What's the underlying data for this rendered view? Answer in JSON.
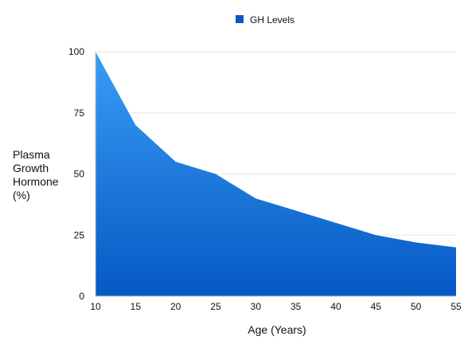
{
  "chart_data": {
    "type": "area",
    "title": "",
    "xlabel": "Age (Years)",
    "ylabel_lines": [
      "Plasma",
      "Growth",
      "Hormone",
      "(%)"
    ],
    "x": [
      10,
      15,
      20,
      25,
      30,
      35,
      40,
      45,
      50,
      55
    ],
    "series": [
      {
        "name": "GH Levels",
        "values": [
          100,
          70,
          55,
          50,
          40,
          35,
          30,
          25,
          22,
          20
        ]
      }
    ],
    "xlim": [
      10,
      55
    ],
    "ylim": [
      0,
      100
    ],
    "x_ticks": [
      10,
      15,
      20,
      25,
      30,
      35,
      40,
      45,
      50,
      55
    ],
    "y_ticks": [
      0,
      25,
      50,
      75,
      100
    ],
    "grid": "horizontal",
    "legend_position": "top-center",
    "colors": {
      "area_top": "#3a9cf5",
      "area_bottom": "#0559c4",
      "grid": "#e6e6e6",
      "axis": "#c9c9c9"
    }
  }
}
